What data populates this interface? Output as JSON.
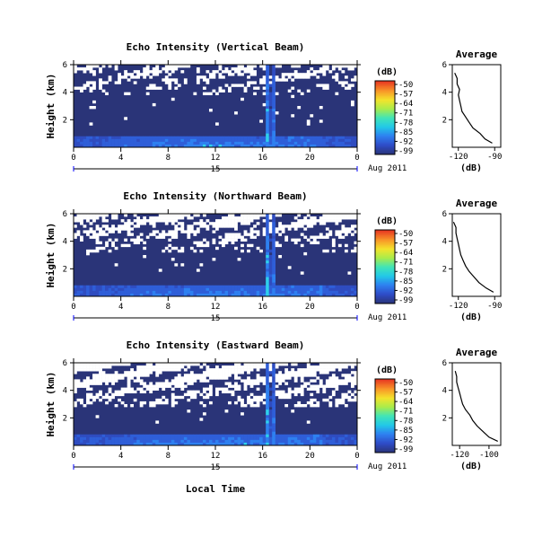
{
  "chart_data": {
    "type": "heatmap",
    "x_axis": {
      "range": [
        0,
        24
      ],
      "ticks": [
        "0",
        "4",
        "8",
        "12",
        "16",
        "20",
        "0"
      ],
      "day_label": "15",
      "date_label": "Aug 2011",
      "label": "Local Time"
    },
    "y_axis": {
      "label": "Height (km)",
      "range": [
        0,
        6
      ],
      "ticks": [
        "2",
        "4",
        "6"
      ]
    },
    "colorbar": {
      "unit": "(dB)",
      "ticks": [
        "-50",
        "-57",
        "-64",
        "-71",
        "-78",
        "-85",
        "-92",
        "-99"
      ],
      "colors": [
        "#2a3478",
        "#2f4cc8",
        "#2e80f0",
        "#22c8e8",
        "#40e4b8",
        "#a8ec4c",
        "#f4e42c",
        "#f89628",
        "#e83c22"
      ]
    },
    "panels": [
      {
        "title": "Echo Intensity (Vertical Beam)",
        "average_title": "Average",
        "average_xlabel": "(dB)",
        "average_xlim": [
          -125,
          -85
        ],
        "average_xticks": [
          "-120",
          "-90"
        ],
        "average_yticks": [
          "2",
          "4",
          "6"
        ],
        "average_profile": {
          "height_km": [
            0.3,
            0.6,
            1.0,
            1.4,
            1.8,
            2.2,
            2.6,
            3.0,
            3.4,
            3.8,
            4.2,
            4.6,
            5.0,
            5.4
          ],
          "db": [
            -92,
            -98,
            -102,
            -108,
            -111,
            -114,
            -117,
            -118,
            -119,
            -120,
            -119,
            -121,
            -121,
            -123
          ]
        },
        "white_density": 0.18,
        "threshold": 0.62
      },
      {
        "title": "Echo Intensity (Northward Beam)",
        "average_title": "Average",
        "average_xlabel": "(dB)",
        "average_xlim": [
          -125,
          -85
        ],
        "average_xticks": [
          "-120",
          "-90"
        ],
        "average_yticks": [
          "2",
          "4",
          "6"
        ],
        "average_profile": {
          "height_km": [
            0.3,
            0.6,
            1.0,
            1.4,
            1.8,
            2.2,
            2.6,
            3.0,
            3.4,
            3.8,
            4.2,
            4.6,
            5.0,
            5.4
          ],
          "db": [
            -91,
            -97,
            -103,
            -107,
            -111,
            -114,
            -116,
            -118,
            -119,
            -120,
            -121,
            -122,
            -122,
            -124
          ]
        },
        "white_density": 0.32,
        "threshold": 0.52
      },
      {
        "title": "Echo Intensity (Eastward Beam)",
        "average_title": "Average",
        "average_xlabel": "(dB)",
        "average_xlim": [
          -125,
          -92
        ],
        "average_xticks": [
          "-120",
          "-100"
        ],
        "average_yticks": [
          "2",
          "4",
          "6"
        ],
        "average_profile": {
          "height_km": [
            0.3,
            0.6,
            1.0,
            1.4,
            1.8,
            2.2,
            2.6,
            3.0,
            3.4,
            3.8,
            4.2,
            4.6,
            5.0,
            5.4
          ],
          "db": [
            -94,
            -100,
            -104,
            -108,
            -111,
            -113,
            -116,
            -118,
            -119,
            -120,
            -121,
            -122,
            -122,
            -123
          ]
        },
        "white_density": 0.45,
        "threshold": 0.45
      }
    ]
  }
}
